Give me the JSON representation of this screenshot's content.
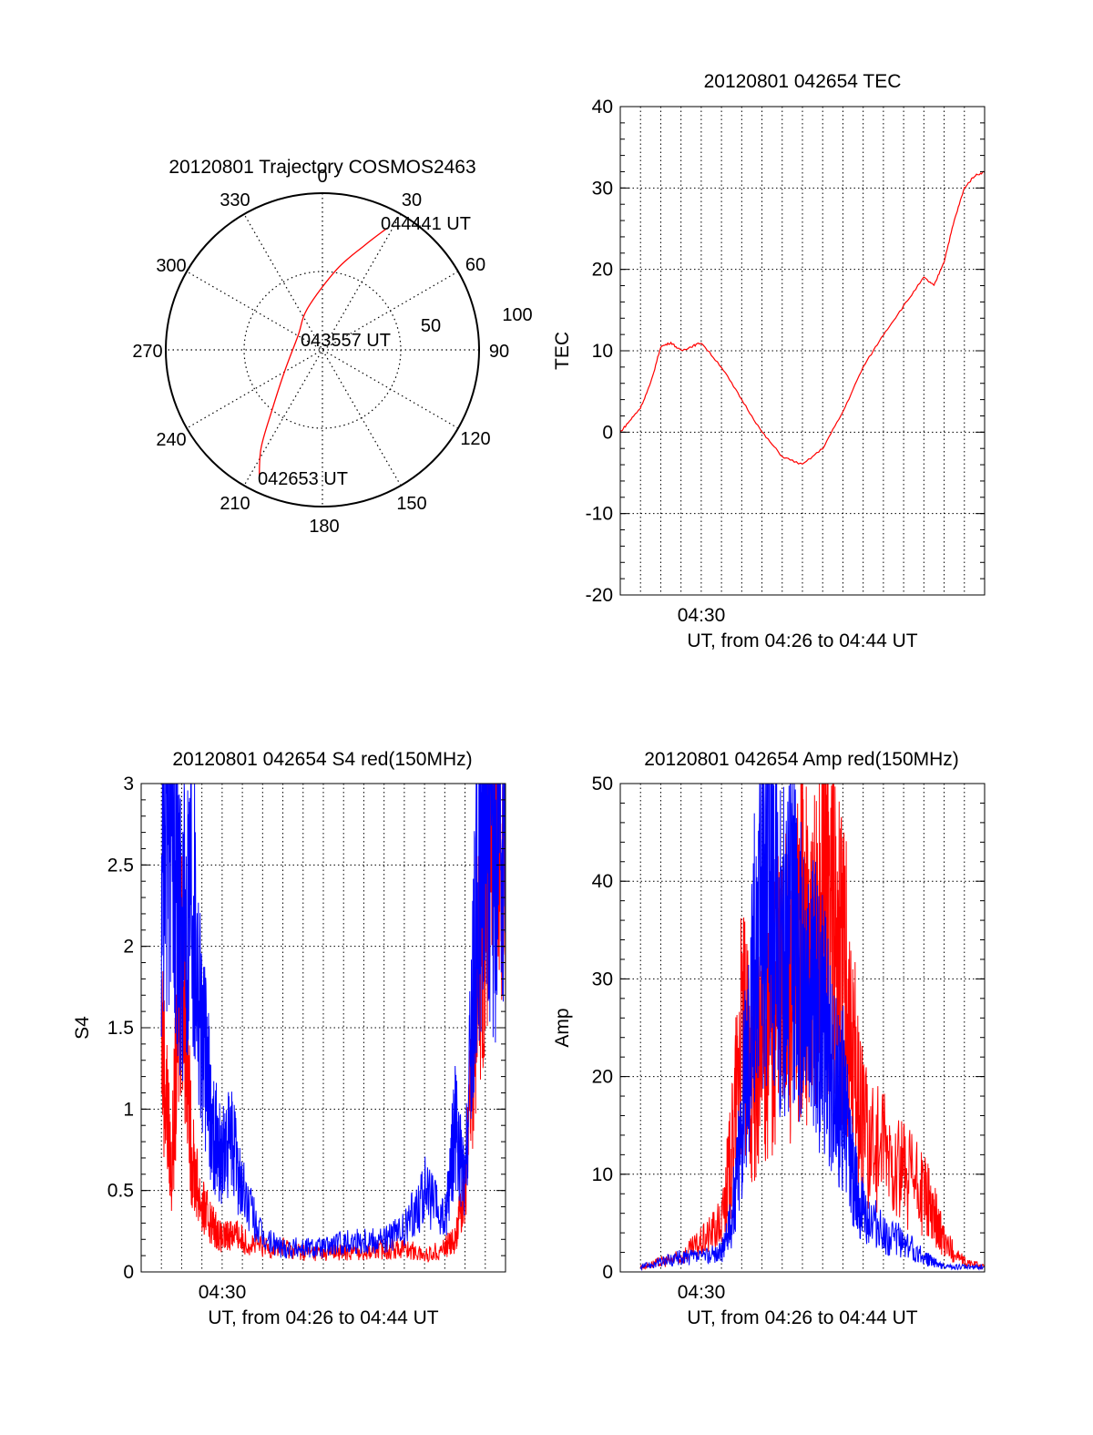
{
  "chart_data": [
    {
      "type": "polar",
      "title": "20120801 Trajectory COSMOS2463",
      "angle_labels": [
        "0",
        "30",
        "60",
        "90",
        "120",
        "150",
        "180",
        "210",
        "240",
        "270",
        "300",
        "330"
      ],
      "radial_labels": [
        "50",
        "100"
      ],
      "grid": true,
      "series": [
        {
          "color": "#ff0000",
          "points": [
            {
              "azimuth": 206,
              "radius": 92
            },
            {
              "azimuth": 212,
              "radius": 74
            },
            {
              "azimuth": 220,
              "radius": 50
            },
            {
              "azimuth": 240,
              "radius": 28
            },
            {
              "azimuth": 300,
              "radius": 18
            },
            {
              "azimuth": 340,
              "radius": 28
            },
            {
              "azimuth": 10,
              "radius": 52
            },
            {
              "azimuth": 22,
              "radius": 72
            },
            {
              "azimuth": 28,
              "radius": 88
            }
          ]
        }
      ],
      "annotations": [
        "042653 UT",
        "043557 UT",
        "044441 UT"
      ]
    },
    {
      "type": "line",
      "title": "20120801 042654 TEC",
      "xlabel": "UT, from 04:26 to 04:44 UT",
      "ylabel": "TEC",
      "xlim": [
        0,
        18
      ],
      "ylim": [
        -20,
        40
      ],
      "xtick_label": "04:30",
      "yticks": [
        "-20",
        "-10",
        "0",
        "10",
        "20",
        "30",
        "40"
      ],
      "grid": true,
      "series": [
        {
          "color": "#ff0000",
          "x": [
            0.0,
            0.5,
            1.0,
            1.5,
            2.0,
            2.5,
            3.0,
            3.5,
            4.0,
            5.0,
            6.0,
            7.0,
            8.0,
            9.0,
            10.0,
            11.0,
            12.0,
            13.0,
            14.0,
            15.0,
            15.5,
            16.0,
            16.5,
            17.0,
            17.5,
            18.0
          ],
          "y": [
            0.0,
            1.5,
            3.0,
            6.0,
            10.5,
            11.0,
            10.0,
            10.5,
            11.0,
            8.0,
            4.0,
            0.0,
            -3.0,
            -4.0,
            -2.0,
            2.5,
            8.0,
            12.0,
            15.5,
            19.0,
            18.0,
            21.0,
            26.0,
            30.0,
            31.5,
            32.0
          ]
        }
      ]
    },
    {
      "type": "line",
      "title": "20120801 042654 S4 red(150MHz)",
      "xlabel": "UT, from 04:26 to 04:44 UT",
      "ylabel": "S4",
      "xlim": [
        0,
        18
      ],
      "ylim": [
        0,
        3
      ],
      "xtick_label": "04:30",
      "yticks": [
        "0",
        "0.5",
        "1",
        "1.5",
        "2",
        "2.5",
        "3"
      ],
      "grid": true,
      "series": [
        {
          "color": "#ff0000",
          "x": [
            1.0,
            1.5,
            2.0,
            2.5,
            3.0,
            3.5,
            4.0,
            4.5,
            5.0,
            6.0,
            7.0,
            8.0,
            9.0,
            10.0,
            11.0,
            12.0,
            13.0,
            14.0,
            15.0,
            15.5,
            16.0,
            16.5,
            17.0,
            17.5,
            18.0
          ],
          "y": [
            1.5,
            0.6,
            2.0,
            0.7,
            0.4,
            0.3,
            0.2,
            0.25,
            0.2,
            0.15,
            0.15,
            0.12,
            0.12,
            0.12,
            0.13,
            0.14,
            0.15,
            0.1,
            0.15,
            0.2,
            0.5,
            1.5,
            2.5,
            3.0,
            2.5
          ]
        },
        {
          "color": "#0000ff",
          "x": [
            1.0,
            1.5,
            2.0,
            2.5,
            3.0,
            3.5,
            4.0,
            4.5,
            5.0,
            6.0,
            7.0,
            8.0,
            9.0,
            10.0,
            11.0,
            12.0,
            13.0,
            14.0,
            15.0,
            15.5,
            16.0,
            16.5,
            17.0,
            17.5,
            18.0
          ],
          "y": [
            2.5,
            3.0,
            2.0,
            2.5,
            1.5,
            0.9,
            0.7,
            0.8,
            0.5,
            0.2,
            0.15,
            0.15,
            0.15,
            0.18,
            0.2,
            0.2,
            0.25,
            0.5,
            0.3,
            0.9,
            0.5,
            2.0,
            3.0,
            2.5,
            3.0
          ]
        }
      ]
    },
    {
      "type": "line",
      "title": "20120801 042654 Amp red(150MHz)",
      "xlabel": "UT, from 04:26 to 04:44 UT",
      "ylabel": "Amp",
      "xlim": [
        0,
        18
      ],
      "ylim": [
        0,
        50
      ],
      "xtick_label": "04:30",
      "yticks": [
        "0",
        "10",
        "20",
        "30",
        "40",
        "50"
      ],
      "grid": true,
      "series": [
        {
          "color": "#ff0000",
          "x": [
            1.0,
            2.0,
            3.0,
            4.0,
            5.0,
            5.5,
            6.0,
            6.5,
            7.0,
            7.5,
            8.0,
            8.5,
            9.0,
            9.5,
            10.0,
            10.5,
            11.0,
            11.5,
            12.0,
            13.0,
            14.0,
            15.0,
            15.5,
            16.0,
            17.0,
            18.0
          ],
          "y": [
            0.5,
            1.0,
            1.5,
            3.0,
            5.0,
            12.0,
            25.0,
            20.0,
            22.0,
            25.0,
            30.0,
            28.0,
            35.0,
            30.0,
            40.0,
            38.0,
            32.0,
            22.0,
            15.0,
            12.0,
            10.0,
            8.0,
            6.0,
            3.0,
            1.0,
            0.5
          ]
        },
        {
          "color": "#0000ff",
          "x": [
            1.0,
            2.0,
            3.0,
            4.0,
            5.0,
            5.5,
            6.0,
            6.5,
            7.0,
            7.5,
            8.0,
            8.5,
            9.0,
            9.5,
            10.0,
            10.5,
            11.0,
            11.5,
            12.0,
            13.0,
            14.0,
            15.0,
            15.5,
            16.0,
            17.0,
            18.0
          ],
          "y": [
            0.5,
            1.0,
            1.5,
            1.5,
            2.0,
            5.0,
            15.0,
            28.0,
            40.0,
            45.0,
            32.0,
            35.0,
            30.0,
            28.0,
            25.0,
            20.0,
            18.0,
            10.0,
            6.0,
            4.0,
            3.0,
            1.5,
            1.0,
            0.5,
            0.5,
            0.5
          ]
        }
      ]
    }
  ]
}
